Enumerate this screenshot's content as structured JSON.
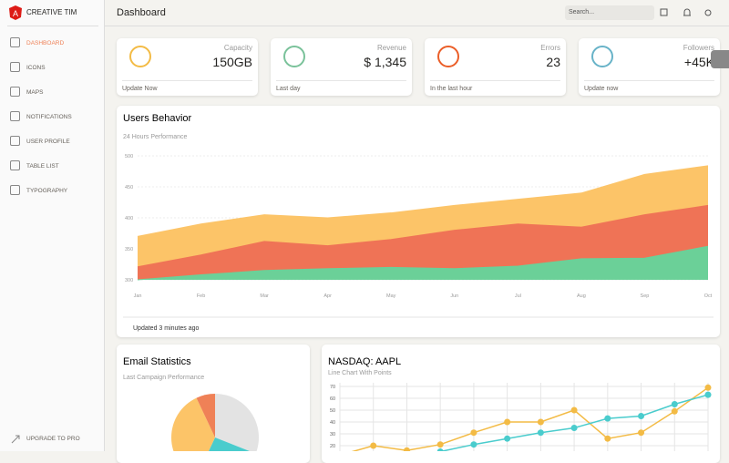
{
  "sidebar": {
    "brand": "CREATIVE TIM",
    "nav": [
      "DASHBOARD",
      "ICONS",
      "MAPS",
      "NOTIFICATIONS",
      "USER PROFILE",
      "TABLE LIST",
      "TYPOGRAPHY"
    ],
    "upgrade": "UPGRADE TO PRO"
  },
  "header": {
    "title": "Dashboard",
    "search_placeholder": "Search..."
  },
  "stats": [
    {
      "label": "Capacity",
      "value": "150GB",
      "footer": "Update Now",
      "color": "#f3bb45"
    },
    {
      "label": "Revenue",
      "value": "$ 1,345",
      "footer": "Last day",
      "color": "#7ac29a"
    },
    {
      "label": "Errors",
      "value": "23",
      "footer": "In the last hour",
      "color": "#eb5e28"
    },
    {
      "label": "Followers",
      "value": "+45K",
      "footer": "Update now",
      "color": "#68b3c8"
    }
  ],
  "chart_data": [
    {
      "type": "area",
      "title": "Users Behavior",
      "subtitle": "24 Hours Performance",
      "footer": "Updated 3 minutes ago",
      "categories": [
        "Jan",
        "Feb",
        "Mar",
        "Apr",
        "May",
        "Jun",
        "Jul",
        "Aug",
        "Sep",
        "Oct"
      ],
      "series": [
        {
          "color": "#fcc468",
          "values": [
            370,
            390,
            405,
            400,
            408,
            420,
            430,
            440,
            470,
            484
          ]
        },
        {
          "color": "#ef7356",
          "values": [
            321,
            340,
            362,
            355,
            365,
            380,
            390,
            385,
            405,
            420
          ]
        },
        {
          "color": "#6bd098",
          "values": [
            300,
            308,
            315,
            318,
            320,
            318,
            322,
            334,
            335,
            354
          ]
        }
      ],
      "ylim": [
        300,
        500
      ],
      "yticks": [
        300,
        350,
        400,
        450,
        500
      ],
      "grid": true
    },
    {
      "type": "pie",
      "title": "Email Statistics",
      "subtitle": "Last Campaign Performance",
      "values": [
        31,
        26,
        36,
        7
      ],
      "colors": [
        "#e3e3e3",
        "#4acccd",
        "#fcc468",
        "#ef8157"
      ]
    },
    {
      "type": "line",
      "title": "NASDAQ: AAPL",
      "subtitle": "Line Chart With Points",
      "series": [
        {
          "color": "#f3bb45",
          "values": [
            12,
            20,
            16,
            21,
            31,
            40,
            40,
            50,
            26,
            31,
            49,
            69
          ]
        },
        {
          "color": "#4acccd",
          "values": [
            5,
            8,
            10,
            15,
            21,
            26,
            31,
            35,
            43,
            45,
            55,
            63
          ]
        }
      ],
      "ylim": [
        0,
        70
      ],
      "yticks": [
        20,
        30,
        40,
        50,
        60,
        70
      ],
      "grid": true
    }
  ]
}
